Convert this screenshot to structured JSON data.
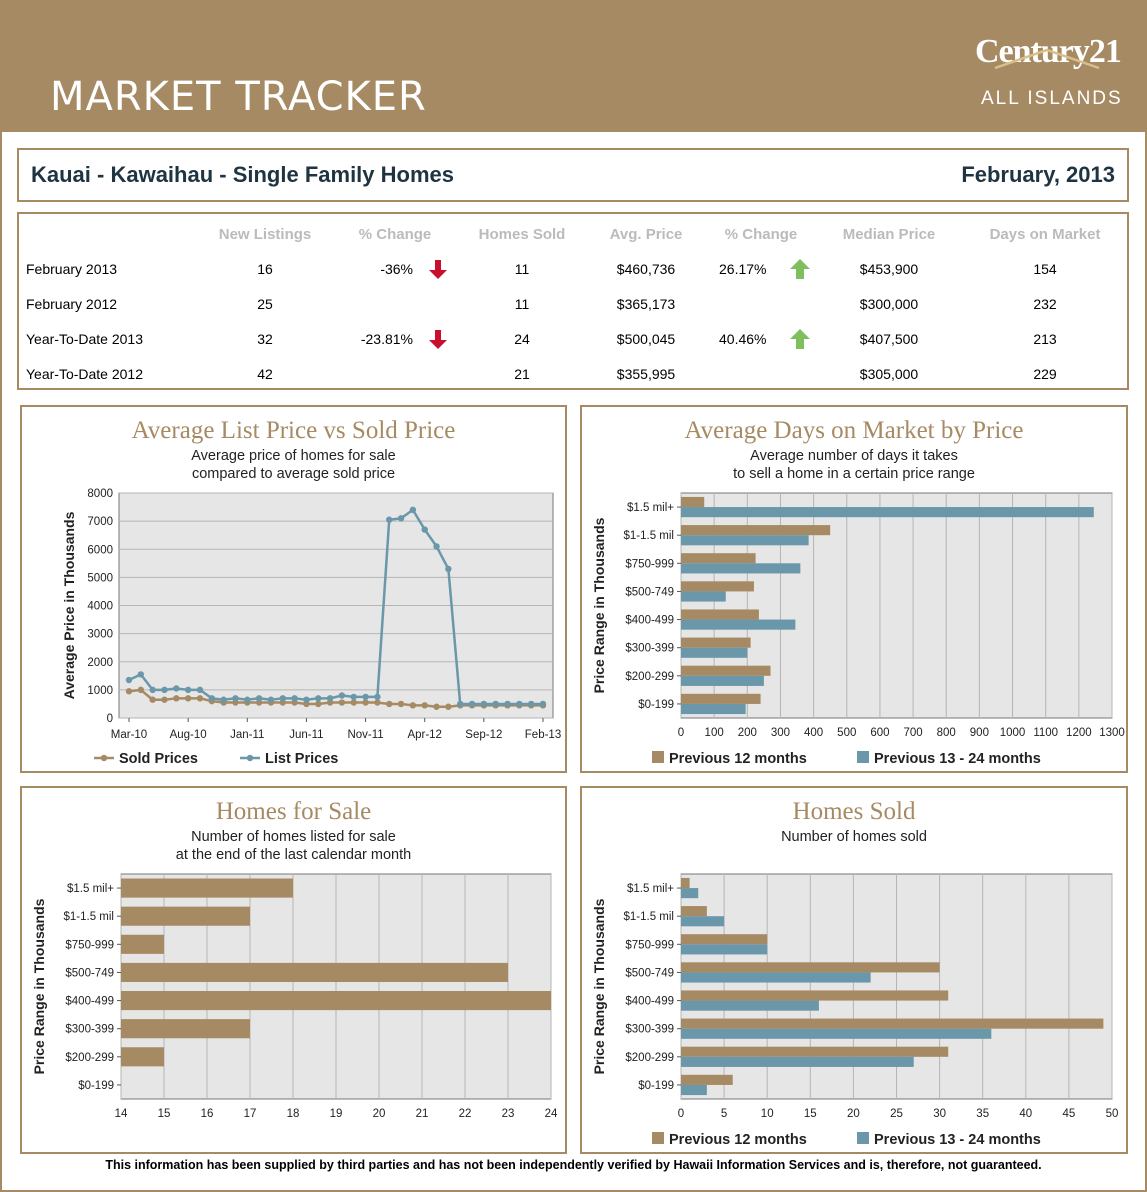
{
  "header": {
    "title": "MARKET TRACKER",
    "logo_text_main": "Century21",
    "logo_text_sub": "ALL ISLANDS",
    "area": "Kauai - Kawaihau - Single Family Homes",
    "month": "February, 2013"
  },
  "colors": {
    "brand": "#a68a63",
    "series_prev12": "#a68a63",
    "series_prev24": "#6a97aa",
    "up": "#7fbf5e",
    "down": "#c8102e",
    "plot_bg": "#e6e6e6"
  },
  "table": {
    "headers": [
      "New Listings",
      "% Change",
      "Homes Sold",
      "Avg. Price",
      "% Change",
      "Median Price",
      "Days on Market"
    ],
    "rows": [
      {
        "label": "February 2013",
        "new_listings": "16",
        "listings_change": "-36%",
        "listings_arrow": "down",
        "homes_sold": "11",
        "avg_price": "$460,736",
        "price_change": "26.17%",
        "price_arrow": "up",
        "median_price": "$453,900",
        "days": "154"
      },
      {
        "label": "February 2012",
        "new_listings": "25",
        "listings_change": "",
        "listings_arrow": "",
        "homes_sold": "11",
        "avg_price": "$365,173",
        "price_change": "",
        "price_arrow": "",
        "median_price": "$300,000",
        "days": "232"
      },
      {
        "label": "Year-To-Date 2013",
        "new_listings": "32",
        "listings_change": "-23.81%",
        "listings_arrow": "down",
        "homes_sold": "24",
        "avg_price": "$500,045",
        "price_change": "40.46%",
        "price_arrow": "up",
        "median_price": "$407,500",
        "days": "213"
      },
      {
        "label": "Year-To-Date 2012",
        "new_listings": "42",
        "listings_change": "",
        "listings_arrow": "",
        "homes_sold": "21",
        "avg_price": "$355,995",
        "price_change": "",
        "price_arrow": "",
        "median_price": "$305,000",
        "days": "229"
      }
    ]
  },
  "chart_data": [
    {
      "id": "list-vs-sold",
      "type": "line",
      "title": "Average List Price vs Sold Price",
      "subtitle": [
        "Average price of homes for sale",
        "compared to average sold price"
      ],
      "ylabel": "Average Price in Thousands",
      "ylim": [
        0,
        8000
      ],
      "yticks": [
        0,
        1000,
        2000,
        3000,
        4000,
        5000,
        6000,
        7000,
        8000
      ],
      "xtick_labels": [
        "Mar-10",
        "Aug-10",
        "Jan-11",
        "Jun-11",
        "Nov-11",
        "Apr-12",
        "Sep-12",
        "Feb-13"
      ],
      "x": [
        "Mar-10",
        "Apr-10",
        "May-10",
        "Jun-10",
        "Jul-10",
        "Aug-10",
        "Sep-10",
        "Oct-10",
        "Nov-10",
        "Dec-10",
        "Jan-11",
        "Feb-11",
        "Mar-11",
        "Apr-11",
        "May-11",
        "Jun-11",
        "Jul-11",
        "Aug-11",
        "Sep-11",
        "Oct-11",
        "Nov-11",
        "Dec-11",
        "Jan-12",
        "Feb-12",
        "Mar-12",
        "Apr-12",
        "May-12",
        "Jun-12",
        "Jul-12",
        "Aug-12",
        "Sep-12",
        "Oct-12",
        "Nov-12",
        "Dec-12",
        "Jan-13",
        "Feb-13"
      ],
      "grid": true,
      "legend": "bottom",
      "series": [
        {
          "name": "Sold Prices",
          "color": "#a68a63",
          "values": [
            950,
            1000,
            650,
            650,
            700,
            700,
            700,
            600,
            550,
            550,
            550,
            550,
            550,
            550,
            550,
            500,
            500,
            550,
            550,
            550,
            550,
            550,
            500,
            500,
            450,
            450,
            400,
            400,
            450,
            450,
            450,
            450,
            450,
            450,
            450,
            450
          ]
        },
        {
          "name": "List Prices",
          "color": "#6a97aa",
          "values": [
            1350,
            1550,
            1000,
            1000,
            1050,
            1000,
            1000,
            700,
            650,
            700,
            650,
            700,
            650,
            700,
            700,
            650,
            700,
            700,
            800,
            750,
            750,
            750,
            7050,
            7100,
            7400,
            6700,
            6100,
            5300,
            500,
            500,
            500,
            500,
            500,
            500,
            500,
            500
          ]
        }
      ]
    },
    {
      "id": "days-on-market",
      "type": "bar",
      "orientation": "horizontal",
      "title": "Average Days on Market by Price",
      "subtitle": [
        "Average number of days it takes",
        "to sell a home in a certain price range"
      ],
      "ylabel": "Price Range in Thousands",
      "categories": [
        "$1.5 mil+",
        "$1-1.5 mil",
        "$750-999",
        "$500-749",
        "$400-499",
        "$300-399",
        "$200-299",
        "$0-199"
      ],
      "xlim": [
        0,
        1300
      ],
      "xticks": [
        0,
        100,
        200,
        300,
        400,
        500,
        600,
        700,
        800,
        900,
        1000,
        1100,
        1200,
        1300
      ],
      "grid": true,
      "legend": "bottom",
      "series": [
        {
          "name": "Previous 12 months",
          "color": "#a68a63",
          "values": [
            70,
            450,
            225,
            220,
            235,
            210,
            270,
            240
          ]
        },
        {
          "name": "Previous 13 - 24 months",
          "color": "#6a97aa",
          "values": [
            1245,
            385,
            360,
            135,
            345,
            200,
            250,
            195
          ]
        }
      ]
    },
    {
      "id": "homes-for-sale",
      "type": "bar",
      "orientation": "horizontal",
      "title": "Homes for Sale",
      "subtitle": [
        "Number of homes listed for sale",
        "at the end of the last calendar month"
      ],
      "ylabel": "Price Range in Thousands",
      "categories": [
        "$1.5 mil+",
        "$1-1.5 mil",
        "$750-999",
        "$500-749",
        "$400-499",
        "$300-399",
        "$200-299",
        "$0-199"
      ],
      "xlim": [
        14,
        24
      ],
      "xticks": [
        14,
        15,
        16,
        17,
        18,
        19,
        20,
        21,
        22,
        23,
        24
      ],
      "grid": true,
      "series": [
        {
          "name": "",
          "color": "#a68a63",
          "values": [
            18,
            17,
            15,
            23,
            24,
            17,
            15,
            14
          ]
        }
      ]
    },
    {
      "id": "homes-sold",
      "type": "bar",
      "orientation": "horizontal",
      "title": "Homes Sold",
      "subtitle": [
        "Number of homes sold"
      ],
      "ylabel": "Price Range in Thousands",
      "categories": [
        "$1.5 mil+",
        "$1-1.5 mil",
        "$750-999",
        "$500-749",
        "$400-499",
        "$300-399",
        "$200-299",
        "$0-199"
      ],
      "xlim": [
        0,
        50
      ],
      "xticks": [
        0,
        5,
        10,
        15,
        20,
        25,
        30,
        35,
        40,
        45,
        50
      ],
      "grid": true,
      "legend": "bottom",
      "series": [
        {
          "name": "Previous 12 months",
          "color": "#a68a63",
          "values": [
            1,
            3,
            10,
            30,
            31,
            49,
            31,
            6
          ]
        },
        {
          "name": "Previous 13 - 24 months",
          "color": "#6a97aa",
          "values": [
            2,
            5,
            10,
            22,
            16,
            36,
            27,
            3
          ]
        }
      ]
    }
  ],
  "footer": {
    "disclaimer": "This information has been supplied by third parties and has not been independently verified by Hawaii Information Services and is, therefore, not guaranteed."
  }
}
